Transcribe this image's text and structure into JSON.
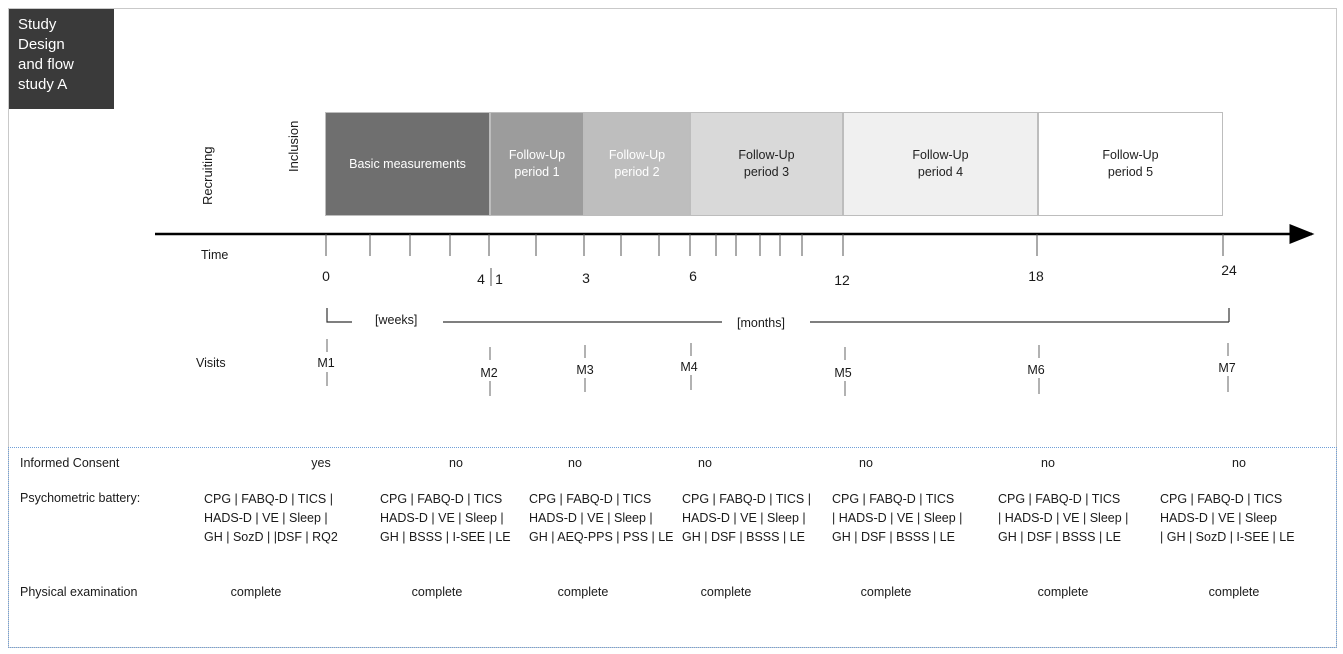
{
  "title": "Study\nDesign\nand flow\nstudy A",
  "phases": {
    "recruiting": "Recruiting",
    "inclusion": "Inclusion"
  },
  "periods": [
    {
      "label": "Basic measurements",
      "color": "#6f6f6f",
      "text_color": "#ffffff"
    },
    {
      "label": "Follow-Up\nperiod 1",
      "color": "#9c9c9c",
      "text_color": "#ffffff"
    },
    {
      "label": "Follow-Up\nperiod 2",
      "color": "#bebebe",
      "text_color": "#ffffff"
    },
    {
      "label": "Follow-Up\nperiod 3",
      "color": "#d9d9d9",
      "text_color": "#222222"
    },
    {
      "label": "Follow-Up\nperiod 4",
      "color": "#f0f0f0",
      "text_color": "#222222"
    },
    {
      "label": "Follow-Up\nperiod 5",
      "color": "#ffffff",
      "text_color": "#222222"
    }
  ],
  "timeline": {
    "time_label": "Time",
    "tick_numbers": [
      "0",
      "4",
      "1",
      "3",
      "6",
      "12",
      "18",
      "24"
    ],
    "weeks_label": "[weeks]",
    "months_label": "[months]"
  },
  "visits": {
    "label": "Visits",
    "items": [
      "M1",
      "M2",
      "M3",
      "M4",
      "M5",
      "M6",
      "M7"
    ]
  },
  "rows": {
    "consent": {
      "label": "Informed Consent",
      "values": [
        "yes",
        "no",
        "no",
        "no",
        "no",
        "no",
        "no"
      ]
    },
    "psychometric": {
      "label": "Psychometric battery:",
      "values": [
        "CPG | FABQ-D | TICS |\nHADS-D | VE | Sleep |\nGH | SozD | |DSF | RQ2",
        "CPG | FABQ-D | TICS\nHADS-D | VE | Sleep |\nGH | BSSS | I-SEE | LE",
        "CPG | FABQ-D | TICS\nHADS-D | VE | Sleep |\nGH | AEQ-PPS | PSS | LE",
        "CPG | FABQ-D | TICS |\nHADS-D | VE | Sleep |\nGH | DSF | BSSS | LE",
        "CPG | FABQ-D | TICS\n| HADS-D | VE | Sleep |\nGH | DSF | BSSS | LE",
        "CPG | FABQ-D | TICS\n| HADS-D | VE | Sleep |\nGH | DSF | BSSS | LE",
        "CPG | FABQ-D | TICS\nHADS-D | VE | Sleep\n| GH | SozD | I-SEE | LE"
      ]
    },
    "physical": {
      "label": "Physical examination",
      "values": [
        "complete",
        "complete",
        "complete",
        "complete",
        "complete",
        "complete",
        "complete"
      ]
    }
  }
}
